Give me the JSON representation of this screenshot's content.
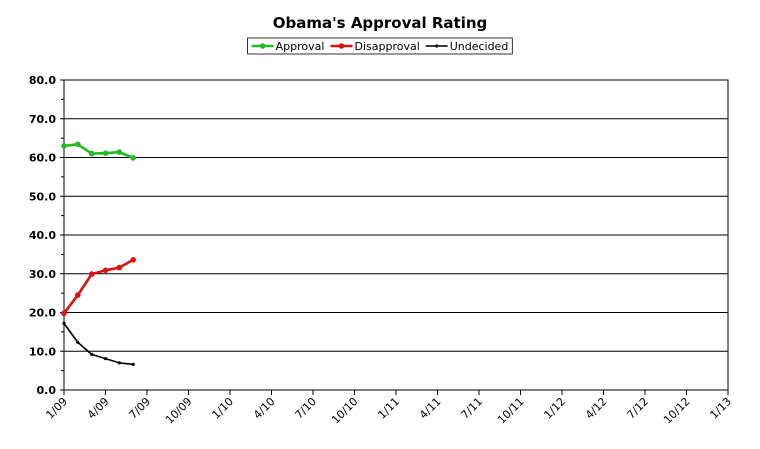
{
  "chart_data": {
    "type": "line",
    "title": "Obama's Approval Rating",
    "xlabel": "",
    "ylabel": "",
    "ylim": [
      0,
      80
    ],
    "yticks": [
      "0.0",
      "10.0",
      "20.0",
      "30.0",
      "40.0",
      "50.0",
      "60.0",
      "70.0",
      "80.0"
    ],
    "xticks": [
      "1/09",
      "4/09",
      "7/09",
      "10/09",
      "1/10",
      "4/10",
      "7/10",
      "10/10",
      "1/11",
      "4/11",
      "7/11",
      "10/11",
      "1/12",
      "4/12",
      "7/12",
      "10/12",
      "1/13"
    ],
    "grid": "horizontal",
    "legend": "top",
    "x": [
      "1/09",
      "2/09",
      "3/09",
      "4/09",
      "5/09",
      "6/09"
    ],
    "series": [
      {
        "name": "Approval",
        "color": "#22bb22",
        "marker": "circle",
        "values": [
          63.0,
          63.4,
          61.0,
          61.1,
          61.4,
          59.9
        ]
      },
      {
        "name": "Disapproval",
        "color": "#dd1111",
        "marker": "circle",
        "values": [
          19.8,
          24.5,
          29.9,
          30.9,
          31.6,
          33.6
        ]
      },
      {
        "name": "Undecided",
        "color": "#000000",
        "marker": "small-dot",
        "values": [
          17.2,
          12.3,
          9.2,
          8.1,
          7.0,
          6.6
        ]
      }
    ]
  }
}
